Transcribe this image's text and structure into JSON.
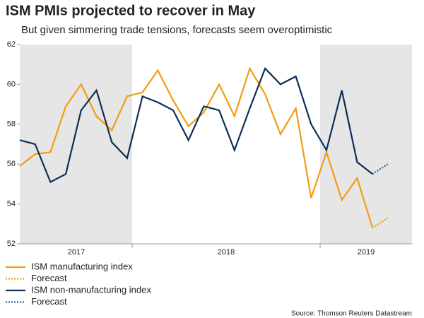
{
  "chart_data": {
    "type": "line",
    "title": "ISM PMIs projected to recover in May",
    "subtitle": "But given simmering trade tensions, forecasts seem overoptimistic",
    "categories": [
      null,
      null,
      null,
      null,
      null,
      null,
      null,
      null,
      null,
      null,
      null,
      null,
      null,
      null,
      null,
      null,
      null,
      null,
      null,
      null,
      null,
      null,
      null,
      null,
      null
    ],
    "year_labels": [
      "2017",
      "2018",
      "2019"
    ],
    "series": [
      {
        "name": "ISM manufacturing index",
        "color": "#f39c12",
        "dash": false,
        "values": [
          55.9,
          56.5,
          56.6,
          58.9,
          60.0,
          58.4,
          57.7,
          59.4,
          59.6,
          60.7,
          59.2,
          57.9,
          58.6,
          60.0,
          58.4,
          60.8,
          59.5,
          57.5,
          58.8,
          54.3,
          56.6,
          54.2,
          55.3,
          52.8,
          null
        ]
      },
      {
        "name": "Forecast",
        "color": "#f39c12",
        "dash": true,
        "values": [
          null,
          null,
          null,
          null,
          null,
          null,
          null,
          null,
          null,
          null,
          null,
          null,
          null,
          null,
          null,
          null,
          null,
          null,
          null,
          null,
          null,
          null,
          null,
          52.8,
          53.3
        ]
      },
      {
        "name": "ISM non-manufacturing index",
        "color": "#0d2e57",
        "dash": false,
        "values": [
          57.2,
          57.0,
          55.1,
          55.5,
          58.7,
          59.7,
          57.1,
          56.3,
          59.4,
          59.1,
          58.7,
          57.2,
          58.9,
          58.7,
          56.7,
          58.8,
          60.8,
          60.0,
          60.4,
          58.0,
          56.7,
          59.7,
          56.1,
          55.5,
          null
        ]
      },
      {
        "name": "Forecast",
        "color": "#3d5f8f",
        "dash": true,
        "values": [
          null,
          null,
          null,
          null,
          null,
          null,
          null,
          null,
          null,
          null,
          null,
          null,
          null,
          null,
          null,
          null,
          null,
          null,
          null,
          null,
          null,
          null,
          null,
          55.5,
          56.0
        ]
      }
    ],
    "ylim": [
      52,
      62
    ],
    "yticks": [
      52,
      54,
      56,
      58,
      60,
      62
    ],
    "grid": false,
    "source": "Source: Thomson Reuters Datastream"
  }
}
